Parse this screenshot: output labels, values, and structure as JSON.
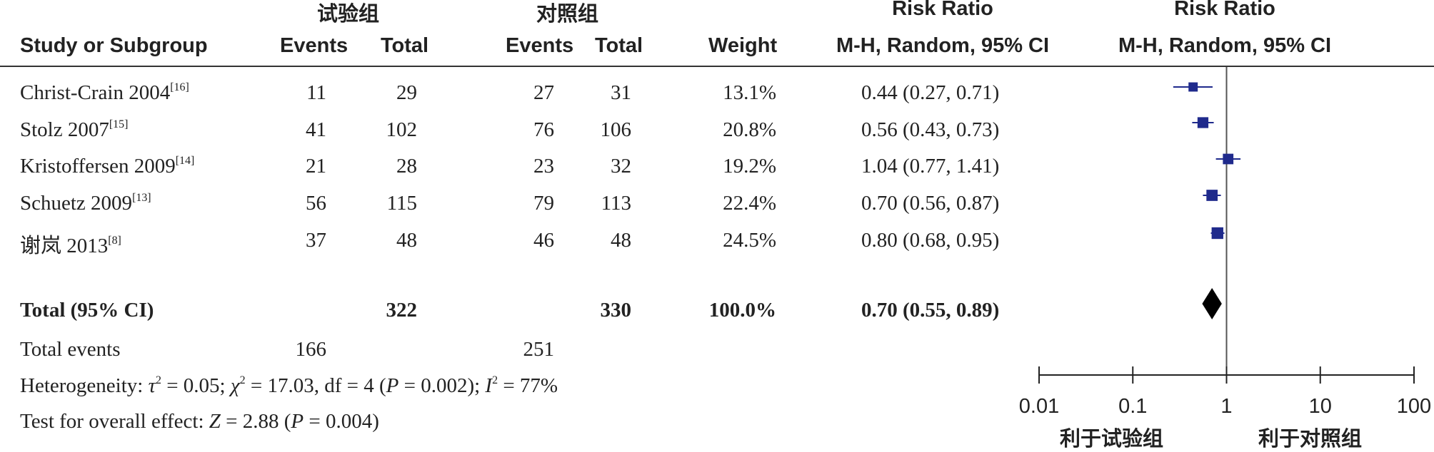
{
  "headers": {
    "group_exp": "试验组",
    "group_ctrl": "对照组",
    "rr1_top": "Risk Ratio",
    "rr2_top": "Risk Ratio",
    "study": "Study or Subgroup",
    "events": "Events",
    "total": "Total",
    "events2": "Events",
    "total2": "Total",
    "weight": "Weight",
    "rr1_bottom": "M-H, Random, 95% CI",
    "rr2_bottom": "M-H, Random, 95% CI"
  },
  "studies": [
    {
      "name": "Christ-Crain 2004",
      "ref": "[16]",
      "e1": "11",
      "t1": "29",
      "e2": "27",
      "t2": "31",
      "weight": "13.1%",
      "ci": "0.44 (0.27, 0.71)"
    },
    {
      "name": "Stolz 2007",
      "ref": "[15]",
      "e1": "41",
      "t1": "102",
      "e2": "76",
      "t2": "106",
      "weight": "20.8%",
      "ci": "0.56 (0.43, 0.73)"
    },
    {
      "name": "Kristoffersen 2009",
      "ref": "[14]",
      "e1": "21",
      "t1": "28",
      "e2": "23",
      "t2": "32",
      "weight": "19.2%",
      "ci": "1.04 (0.77, 1.41)"
    },
    {
      "name": "Schuetz 2009",
      "ref": "[13]",
      "e1": "56",
      "t1": "115",
      "e2": "79",
      "t2": "113",
      "weight": "22.4%",
      "ci": "0.70 (0.56, 0.87)"
    },
    {
      "name": "谢岚 2013",
      "ref": "[8]",
      "e1": "37",
      "t1": "48",
      "e2": "46",
      "t2": "48",
      "weight": "24.5%",
      "ci": "0.80 (0.68, 0.95)"
    }
  ],
  "total": {
    "label": "Total (95% CI)",
    "t1": "322",
    "t2": "330",
    "weight": "100.0%",
    "ci": "0.70 (0.55, 0.89)"
  },
  "total_events": {
    "label": "Total events",
    "e1": "166",
    "e2": "251"
  },
  "heterogeneity": {
    "prefix": "Heterogeneity: ",
    "tau": "τ",
    "tau_val": " = 0.05; ",
    "chi": "χ",
    "chi_val": " = 17.03, df = 4 (",
    "p": "P",
    "p_val": " = 0.002); ",
    "i": "I",
    "i_val": " = 77%"
  },
  "overall": {
    "prefix": "Test for overall effect: ",
    "z": "Z",
    "z_val": " = 2.88 (",
    "p": "P",
    "p_val": " = 0.004)"
  },
  "chart_data": {
    "type": "scatter",
    "title": "Risk Ratio",
    "subtitle": "M-H, Random, 95% CI",
    "scale": "log",
    "xlim": [
      0.01,
      100
    ],
    "ticks": [
      0.01,
      0.1,
      1,
      10,
      100
    ],
    "tick_labels": [
      "0.01",
      "0.1",
      "1",
      "10",
      "100"
    ],
    "reference_line": 1,
    "left_label": "利于试验组",
    "right_label": "利于对照组",
    "marker_color": "#1f2a8c",
    "points": [
      {
        "study": "Christ-Crain 2004",
        "rr": 0.44,
        "lo": 0.27,
        "hi": 0.71,
        "weight": 13.1
      },
      {
        "study": "Stolz 2007",
        "rr": 0.56,
        "lo": 0.43,
        "hi": 0.73,
        "weight": 20.8
      },
      {
        "study": "Kristoffersen 2009",
        "rr": 1.04,
        "lo": 0.77,
        "hi": 1.41,
        "weight": 19.2
      },
      {
        "study": "Schuetz 2009",
        "rr": 0.7,
        "lo": 0.56,
        "hi": 0.87,
        "weight": 22.4
      },
      {
        "study": "谢岚 2013",
        "rr": 0.8,
        "lo": 0.68,
        "hi": 0.95,
        "weight": 24.5
      }
    ],
    "pooled": {
      "rr": 0.7,
      "lo": 0.55,
      "hi": 0.89
    }
  }
}
